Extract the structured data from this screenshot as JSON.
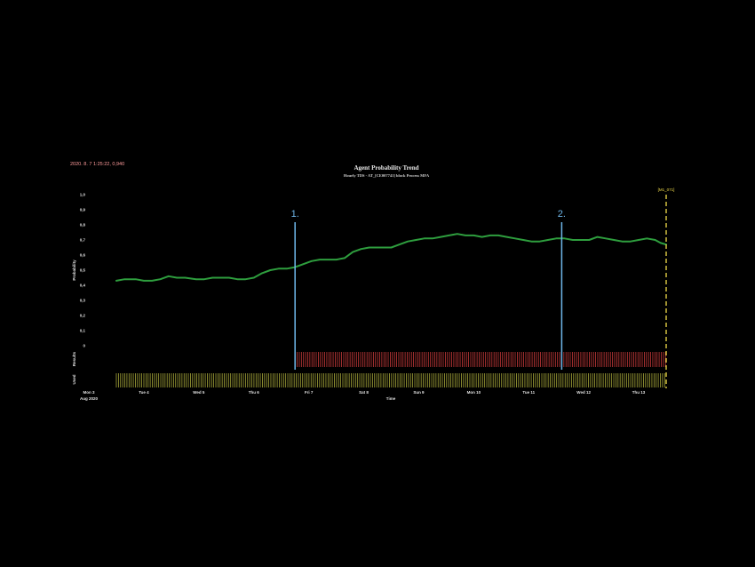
{
  "timestamp": "2020. 8. 7 1:25:22, 0,940",
  "chart_data": {
    "type": "line",
    "title": "Agent Probability Trend",
    "subtitle": "Hourly TDS - AT_[CE007741] block Process MFA",
    "ylabel": "Probability",
    "xlabel": "Time",
    "ylim": [
      0,
      1
    ],
    "y_ticks": [
      "1,0",
      "0,9",
      "0,8",
      "0,7",
      "0,6",
      "0,5",
      "0,4",
      "0,3",
      "0,2",
      "0,1",
      "0"
    ],
    "x_ticks": [
      {
        "day": 0,
        "label": "Mon 3",
        "label2": "Aug 2020"
      },
      {
        "day": 1,
        "label": "Tue 4"
      },
      {
        "day": 2,
        "label": "Wed 5"
      },
      {
        "day": 3,
        "label": "Thu 6"
      },
      {
        "day": 4,
        "label": "Fri 7"
      },
      {
        "day": 5,
        "label": "Sat 8"
      },
      {
        "day": 6,
        "label": "Sun 9"
      },
      {
        "day": 7,
        "label": "Mon 10"
      },
      {
        "day": 8,
        "label": "Tue 11"
      },
      {
        "day": 9,
        "label": "Wed 12"
      },
      {
        "day": 10,
        "label": "Thu 13"
      }
    ],
    "x_start_day": 0.5,
    "x_end_day": 10.5,
    "series": [
      {
        "color": "#2e9e3e",
        "points": [
          [
            0.5,
            0.43
          ],
          [
            0.65,
            0.44
          ],
          [
            0.85,
            0.44
          ],
          [
            1.0,
            0.43
          ],
          [
            1.15,
            0.43
          ],
          [
            1.3,
            0.44
          ],
          [
            1.45,
            0.46
          ],
          [
            1.6,
            0.45
          ],
          [
            1.75,
            0.45
          ],
          [
            1.95,
            0.44
          ],
          [
            2.1,
            0.44
          ],
          [
            2.25,
            0.45
          ],
          [
            2.4,
            0.45
          ],
          [
            2.55,
            0.45
          ],
          [
            2.7,
            0.44
          ],
          [
            2.85,
            0.44
          ],
          [
            3.0,
            0.45
          ],
          [
            3.15,
            0.48
          ],
          [
            3.3,
            0.5
          ],
          [
            3.45,
            0.51
          ],
          [
            3.6,
            0.51
          ],
          [
            3.75,
            0.52
          ],
          [
            3.9,
            0.54
          ],
          [
            4.05,
            0.56
          ],
          [
            4.2,
            0.57
          ],
          [
            4.35,
            0.57
          ],
          [
            4.5,
            0.57
          ],
          [
            4.65,
            0.58
          ],
          [
            4.8,
            0.62
          ],
          [
            4.95,
            0.64
          ],
          [
            5.1,
            0.65
          ],
          [
            5.3,
            0.65
          ],
          [
            5.5,
            0.65
          ],
          [
            5.65,
            0.67
          ],
          [
            5.8,
            0.69
          ],
          [
            5.95,
            0.7
          ],
          [
            6.1,
            0.71
          ],
          [
            6.25,
            0.71
          ],
          [
            6.4,
            0.72
          ],
          [
            6.55,
            0.73
          ],
          [
            6.7,
            0.74
          ],
          [
            6.85,
            0.73
          ],
          [
            7.0,
            0.73
          ],
          [
            7.15,
            0.72
          ],
          [
            7.3,
            0.73
          ],
          [
            7.45,
            0.73
          ],
          [
            7.6,
            0.72
          ],
          [
            7.75,
            0.71
          ],
          [
            7.9,
            0.7
          ],
          [
            8.05,
            0.69
          ],
          [
            8.2,
            0.69
          ],
          [
            8.35,
            0.7
          ],
          [
            8.5,
            0.71
          ],
          [
            8.65,
            0.71
          ],
          [
            8.8,
            0.7
          ],
          [
            8.95,
            0.7
          ],
          [
            9.1,
            0.7
          ],
          [
            9.25,
            0.72
          ],
          [
            9.4,
            0.71
          ],
          [
            9.55,
            0.7
          ],
          [
            9.7,
            0.69
          ],
          [
            9.85,
            0.69
          ],
          [
            10.0,
            0.7
          ],
          [
            10.15,
            0.71
          ],
          [
            10.3,
            0.7
          ],
          [
            10.4,
            0.68
          ],
          [
            10.5,
            0.67
          ]
        ]
      }
    ],
    "markers": [
      {
        "label": "1.",
        "day": 3.75,
        "color": "#6fb7ea"
      },
      {
        "label": "2.",
        "day": 8.6,
        "color": "#6fb7ea"
      }
    ],
    "annotation_line": {
      "label": "[M1_071]",
      "day": 10.5,
      "color": "#f2dd4a"
    },
    "results_band": {
      "label": "Results",
      "color": "#c83a3a",
      "start_day": 3.75,
      "end_day": 10.5
    },
    "used_band": {
      "label": "Used",
      "color": "#a8a83a",
      "start_day": 0.5,
      "end_day": 10.5
    }
  }
}
